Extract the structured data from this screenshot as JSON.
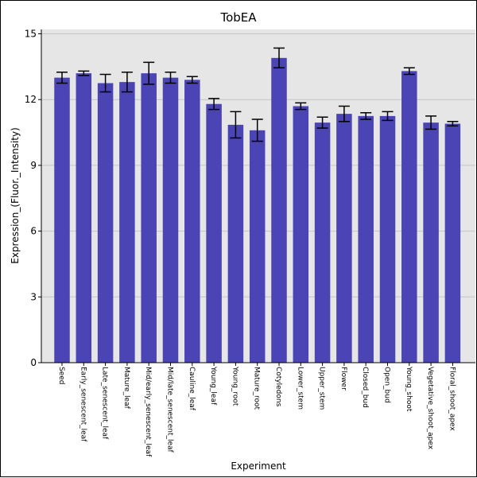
{
  "chart_data": {
    "type": "bar",
    "title": "TobEA",
    "xlabel": "Experiment",
    "ylabel": "Expression_(Fluor._Intensity)",
    "ylim": [
      0,
      15.2
    ],
    "yticks": [
      "0",
      "3",
      "6",
      "9",
      "12",
      "15"
    ],
    "grid": true,
    "bar_color": "#4b44b5",
    "background": "#e6e6e6",
    "categories": [
      "Seed",
      "Early_senescent_leaf",
      "Late_senescent_leaf",
      "Mature_leaf",
      "Mid/early_senescent_leaf",
      "Mid/late_senescent_leaf",
      "Cauline_leaf",
      "Young_leaf",
      "Young_root",
      "Mature_root",
      "Cotyledons",
      "Lower_stem",
      "Upper_stem",
      "Flower",
      "Closed_bud",
      "Open_bud",
      "Young_shoot",
      "Vegetative_shoot_apex",
      "Floral_shoot_apex"
    ],
    "values": [
      13.0,
      13.2,
      12.75,
      12.8,
      13.2,
      13.0,
      12.9,
      11.8,
      10.85,
      10.6,
      13.9,
      11.7,
      10.95,
      11.35,
      11.25,
      11.25,
      13.3,
      10.95,
      10.9
    ],
    "errors": [
      0.25,
      0.1,
      0.4,
      0.45,
      0.5,
      0.25,
      0.15,
      0.25,
      0.6,
      0.5,
      0.45,
      0.15,
      0.25,
      0.35,
      0.15,
      0.2,
      0.15,
      0.3,
      0.1
    ]
  }
}
